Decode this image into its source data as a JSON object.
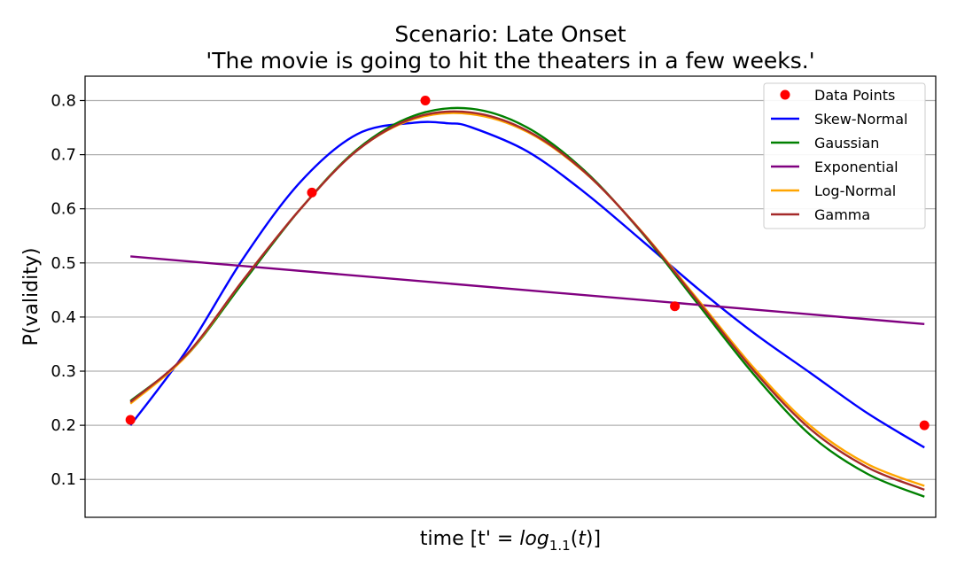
{
  "chart_data": {
    "type": "line",
    "title": "Scenario: Late Onset",
    "subtitle": "'The movie is going to hit the theaters in a few weeks.'",
    "xlabel_parts": {
      "prefix": "time [t' = ",
      "log": "log",
      "base": "1.1",
      "paren_open": "(",
      "var": "t",
      "paren_close": ")]"
    },
    "ylabel": "P(validity)",
    "ylim": [
      0.03,
      0.845
    ],
    "xlim": [
      -0.4,
      7.1
    ],
    "yticks": [
      "0.1",
      "0.2",
      "0.3",
      "0.4",
      "0.5",
      "0.6",
      "0.7",
      "0.8"
    ],
    "grid": "horizontal",
    "legend_position": "top-right",
    "scatter": {
      "name": "Data Points",
      "color": "#ff0000",
      "x": [
        0.0,
        1.6,
        2.6,
        4.8,
        7.0
      ],
      "y": [
        0.21,
        0.63,
        0.8,
        0.42,
        0.2
      ]
    },
    "series": [
      {
        "name": "Skew-Normal",
        "color": "#0000ff",
        "x": [
          0.0,
          0.5,
          1.0,
          1.5,
          2.0,
          2.5,
          2.8,
          3.0,
          3.5,
          4.0,
          4.5,
          5.0,
          5.5,
          6.0,
          6.5,
          7.0
        ],
        "y": [
          0.2,
          0.34,
          0.51,
          0.65,
          0.738,
          0.759,
          0.758,
          0.751,
          0.706,
          0.631,
          0.543,
          0.453,
          0.37,
          0.296,
          0.222,
          0.159
        ]
      },
      {
        "name": "Gaussian",
        "color": "#008000",
        "x": [
          0.0,
          0.5,
          1.0,
          1.5,
          2.0,
          2.5,
          3.0,
          3.5,
          4.0,
          4.5,
          5.0,
          5.5,
          6.0,
          6.5,
          7.0
        ],
        "y": [
          0.245,
          0.33,
          0.466,
          0.6,
          0.71,
          0.772,
          0.785,
          0.75,
          0.671,
          0.558,
          0.425,
          0.293,
          0.181,
          0.11,
          0.068
        ]
      },
      {
        "name": "Exponential",
        "color": "#800080",
        "x": [
          0.0,
          7.0
        ],
        "y": [
          0.512,
          0.387
        ]
      },
      {
        "name": "Log-Normal",
        "color": "#ffa500",
        "x": [
          0.0,
          0.5,
          1.0,
          1.5,
          2.0,
          2.5,
          3.0,
          3.5,
          4.0,
          4.5,
          5.0,
          5.5,
          6.0,
          6.5,
          7.0
        ],
        "y": [
          0.24,
          0.33,
          0.47,
          0.6,
          0.708,
          0.766,
          0.775,
          0.742,
          0.668,
          0.56,
          0.433,
          0.305,
          0.198,
          0.128,
          0.088
        ]
      },
      {
        "name": "Gamma",
        "color": "#a52a2a",
        "x": [
          0.0,
          0.5,
          1.0,
          1.5,
          2.0,
          2.5,
          3.0,
          3.5,
          4.0,
          4.5,
          5.0,
          5.5,
          6.0,
          6.5,
          7.0
        ],
        "y": [
          0.243,
          0.332,
          0.47,
          0.6,
          0.708,
          0.768,
          0.778,
          0.744,
          0.669,
          0.559,
          0.43,
          0.3,
          0.192,
          0.122,
          0.081
        ]
      }
    ]
  }
}
